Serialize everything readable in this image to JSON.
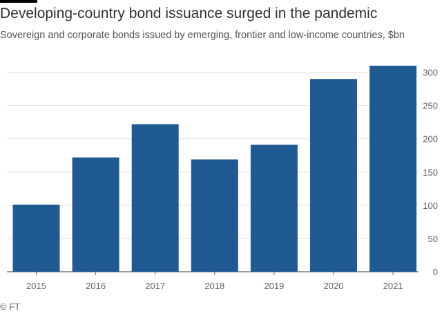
{
  "header": {
    "title": "Developing-country bond issuance surged in the pandemic",
    "subtitle": "Sovereign and corporate bonds issued by emerging, frontier and low-income countries, $bn"
  },
  "footer": {
    "source": "© FT"
  },
  "colors": {
    "bar": "#1f5a93",
    "grid": "#e6e1dc",
    "axis": "#66605c"
  },
  "chart_data": {
    "type": "bar",
    "title": "Developing-country bond issuance surged in the pandemic",
    "subtitle": "Sovereign and corporate bonds issued by emerging, frontier and low-income countries, $bn",
    "xlabel": "",
    "ylabel": "$bn",
    "categories": [
      "2015",
      "2016",
      "2017",
      "2018",
      "2019",
      "2020",
      "2021"
    ],
    "values": [
      101,
      172,
      222,
      169,
      191,
      290,
      310
    ],
    "ylim": [
      0,
      310
    ],
    "yticks": [
      0,
      50,
      100,
      150,
      200,
      250,
      300
    ],
    "y_axis_side": "right",
    "grid": true
  }
}
